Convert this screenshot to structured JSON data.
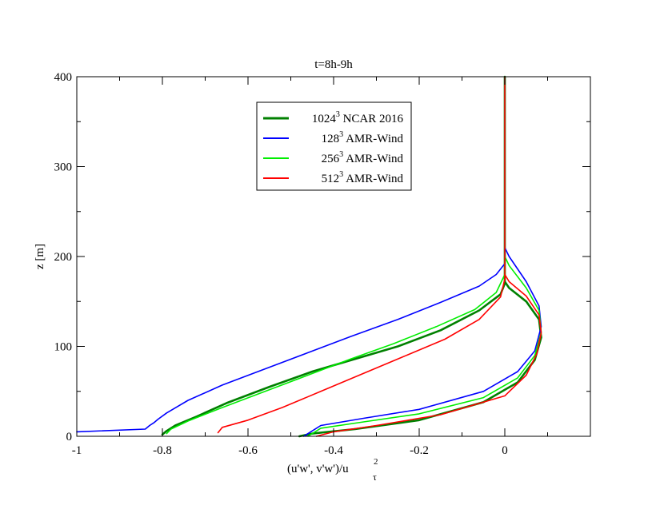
{
  "chart_data": {
    "type": "line",
    "title": "t=8h-9h",
    "xlabel": "(u'w', v'w')/u",
    "xlabel_sup": "2",
    "xlabel_sub": "τ",
    "ylabel": "z [m]",
    "xlim": [
      -1.0,
      0.2
    ],
    "ylim": [
      0,
      400
    ],
    "xticks": [
      -1,
      -0.8,
      -0.6,
      -0.4,
      -0.2,
      0
    ],
    "xtick_labels": [
      "-1",
      "-0.8",
      "-0.6",
      "-0.4",
      "-0.2",
      "0"
    ],
    "yticks": [
      0,
      100,
      200,
      300,
      400
    ],
    "ytick_labels": [
      "0",
      "100",
      "200",
      "300",
      "400"
    ],
    "legend_position": "top-center",
    "series": [
      {
        "name": "1024",
        "sup": "3",
        "suffix": " NCAR 2016",
        "color": "#008000",
        "width": 2.6,
        "x": [
          -0.8,
          -0.79,
          -0.77,
          -0.72,
          -0.65,
          -0.55,
          -0.45,
          -0.35,
          -0.25,
          -0.15,
          -0.06,
          -0.01,
          0.0,
          0.0,
          0.0
        ],
        "y": [
          2,
          6,
          12,
          22,
          37,
          55,
          72,
          86,
          100,
          118,
          140,
          158,
          170,
          180,
          400
        ]
      },
      {
        "name": "1024",
        "sup": "3",
        "suffix": " NCAR 2016",
        "color": "#008000",
        "width": 2.6,
        "x": [
          -0.48,
          -0.45,
          -0.35,
          -0.2,
          -0.05,
          0.03,
          0.07,
          0.085,
          0.08,
          0.05,
          0.01,
          0.0
        ],
        "y": [
          0,
          3,
          8,
          18,
          38,
          60,
          85,
          110,
          130,
          150,
          165,
          172
        ]
      },
      {
        "name": "128",
        "sup": "3",
        "suffix": " AMR-Wind",
        "color": "#0000ff",
        "width": 1.6,
        "x": [
          -1.0,
          -0.84,
          -0.83,
          -0.82,
          -0.81,
          -0.79,
          -0.74,
          -0.66,
          -0.56,
          -0.46,
          -0.36,
          -0.25,
          -0.15,
          -0.06,
          -0.02,
          0.0,
          0.0
        ],
        "y": [
          5,
          8,
          12,
          15,
          19,
          26,
          40,
          57,
          75,
          93,
          111,
          130,
          149,
          167,
          180,
          192,
          400
        ]
      },
      {
        "name": "128",
        "sup": "3",
        "suffix": " AMR-Wind",
        "color": "#0000ff",
        "width": 1.6,
        "x": [
          -0.47,
          -0.43,
          -0.33,
          -0.2,
          -0.05,
          0.03,
          0.07,
          0.085,
          0.08,
          0.05,
          0.01,
          0.0
        ],
        "y": [
          0,
          12,
          20,
          30,
          50,
          72,
          95,
          122,
          145,
          172,
          200,
          210
        ]
      },
      {
        "name": "256",
        "sup": "3",
        "suffix": " AMR-Wind",
        "color": "#00ee00",
        "width": 1.6,
        "x": [
          -0.79,
          -0.78,
          -0.74,
          -0.66,
          -0.56,
          -0.46,
          -0.36,
          -0.26,
          -0.16,
          -0.07,
          -0.02,
          0.0,
          0.0
        ],
        "y": [
          3,
          8,
          17,
          32,
          50,
          68,
          86,
          103,
          122,
          141,
          160,
          180,
          400
        ]
      },
      {
        "name": "256",
        "sup": "3",
        "suffix": " AMR-Wind",
        "color": "#00ee00",
        "width": 1.6,
        "x": [
          -0.46,
          -0.43,
          -0.33,
          -0.2,
          -0.05,
          0.03,
          0.07,
          0.085,
          0.08,
          0.05,
          0.01,
          0.0
        ],
        "y": [
          0,
          9,
          16,
          25,
          43,
          65,
          90,
          116,
          140,
          165,
          190,
          200
        ]
      },
      {
        "name": "512",
        "sup": "3",
        "suffix": " AMR-Wind",
        "color": "#ff0000",
        "width": 1.6,
        "x": [
          -0.67,
          -0.66,
          -0.6,
          -0.52,
          -0.43,
          -0.34,
          -0.24,
          -0.14,
          -0.06,
          -0.01,
          0.0,
          0.0
        ],
        "y": [
          4,
          10,
          18,
          32,
          50,
          68,
          88,
          108,
          130,
          155,
          175,
          400
        ]
      },
      {
        "name": "512",
        "sup": "3",
        "suffix": " AMR-Wind",
        "color": "#ff0000",
        "width": 1.6,
        "x": [
          -0.44,
          -0.4,
          -0.3,
          -0.15,
          0.0,
          0.05,
          0.075,
          0.085,
          0.08,
          0.05,
          0.01,
          0.0
        ],
        "y": [
          0,
          5,
          12,
          24,
          45,
          68,
          92,
          115,
          135,
          156,
          172,
          180
        ]
      }
    ],
    "legend": [
      {
        "base": "1024",
        "sup": "3",
        "suffix": " NCAR 2016",
        "color": "#008000"
      },
      {
        "base": "128",
        "sup": "3",
        "suffix": " AMR-Wind",
        "color": "#0000ff"
      },
      {
        "base": "256",
        "sup": "3",
        "suffix": " AMR-Wind",
        "color": "#00ee00"
      },
      {
        "base": "512",
        "sup": "3",
        "suffix": " AMR-Wind",
        "color": "#ff0000"
      }
    ]
  }
}
